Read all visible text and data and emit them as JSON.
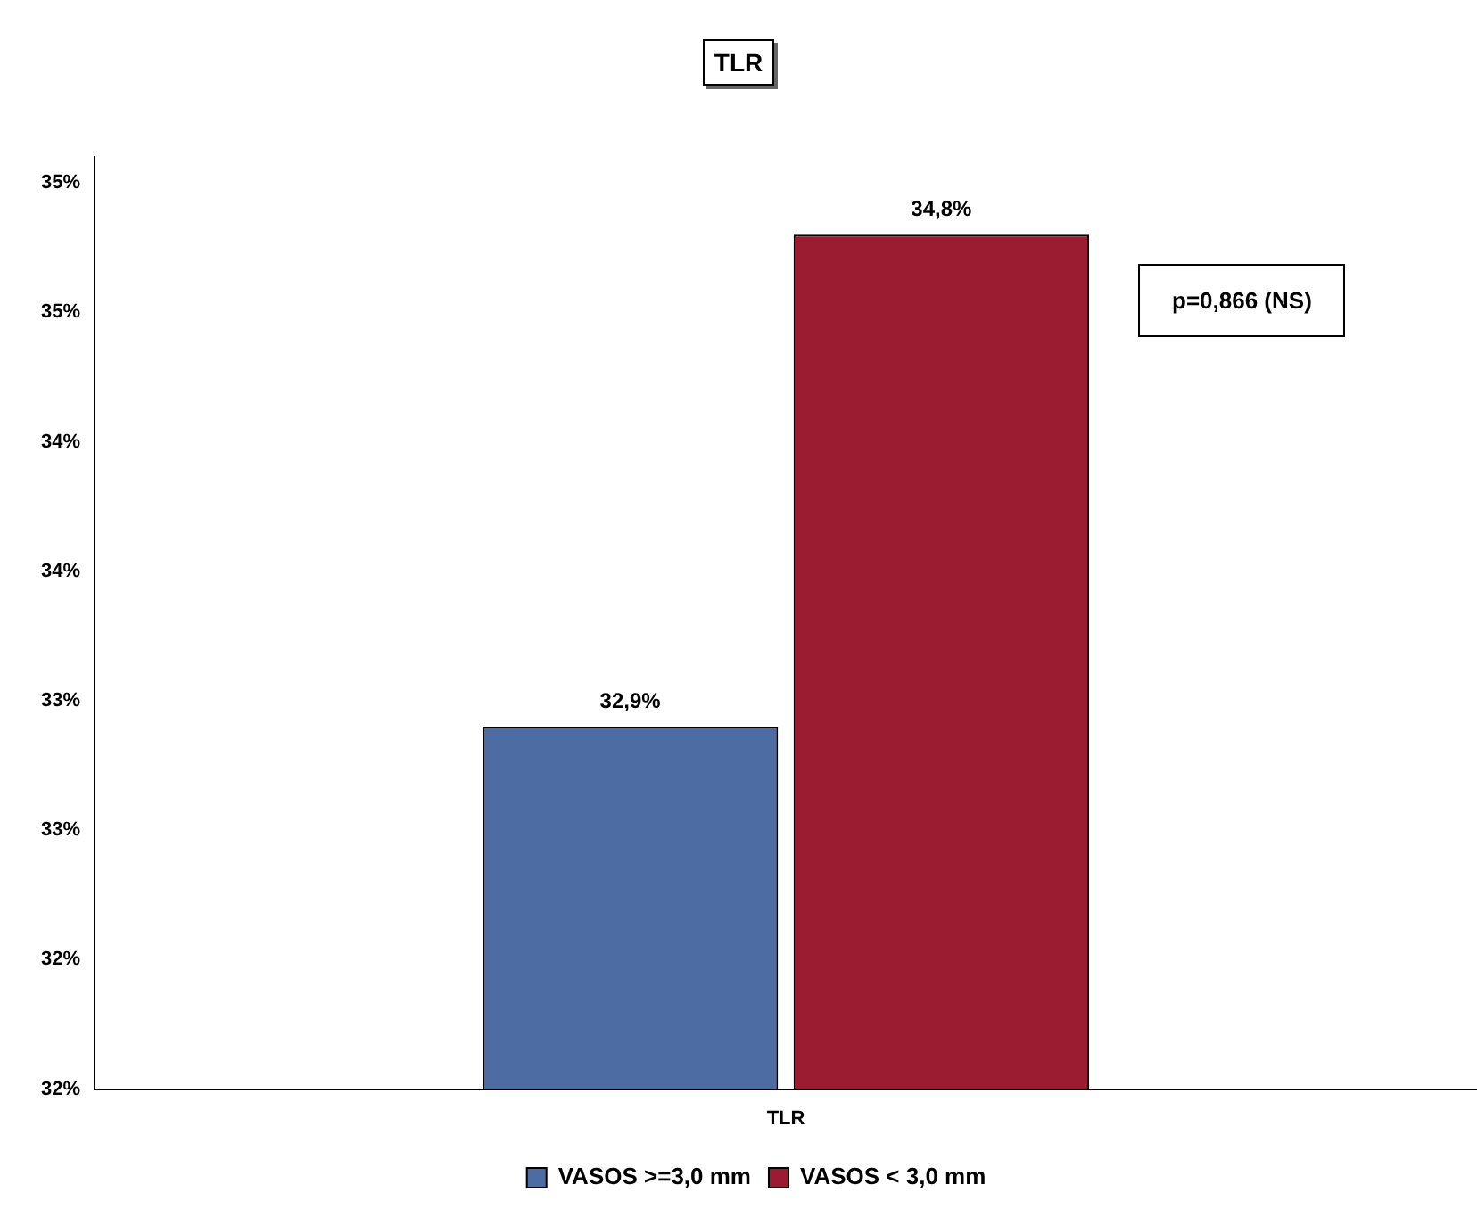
{
  "chart_data": {
    "type": "bar",
    "title": "TLR",
    "categories": [
      "TLR"
    ],
    "series": [
      {
        "name": "VASOS >=3,0 mm",
        "color": "#4d6ca3",
        "values": [
          32.9
        ],
        "value_labels": [
          "32,9%"
        ]
      },
      {
        "name": "VASOS < 3,0 mm",
        "color": "#9b1c30",
        "values": [
          34.8
        ],
        "value_labels": [
          "34,8%"
        ]
      }
    ],
    "ylim": [
      31.5,
      35.1
    ],
    "yticks": [
      {
        "value": 31.5,
        "label": "32%"
      },
      {
        "value": 32,
        "label": "32%"
      },
      {
        "value": 32.5,
        "label": "33%"
      },
      {
        "value": 33,
        "label": "33%"
      },
      {
        "value": 33.5,
        "label": "34%"
      },
      {
        "value": 34,
        "label": "34%"
      },
      {
        "value": 34.5,
        "label": "35%"
      },
      {
        "value": 35,
        "label": "35%"
      }
    ],
    "grid": false,
    "legend": "bottom",
    "annotations": [
      "p=0,866 (NS)"
    ]
  }
}
